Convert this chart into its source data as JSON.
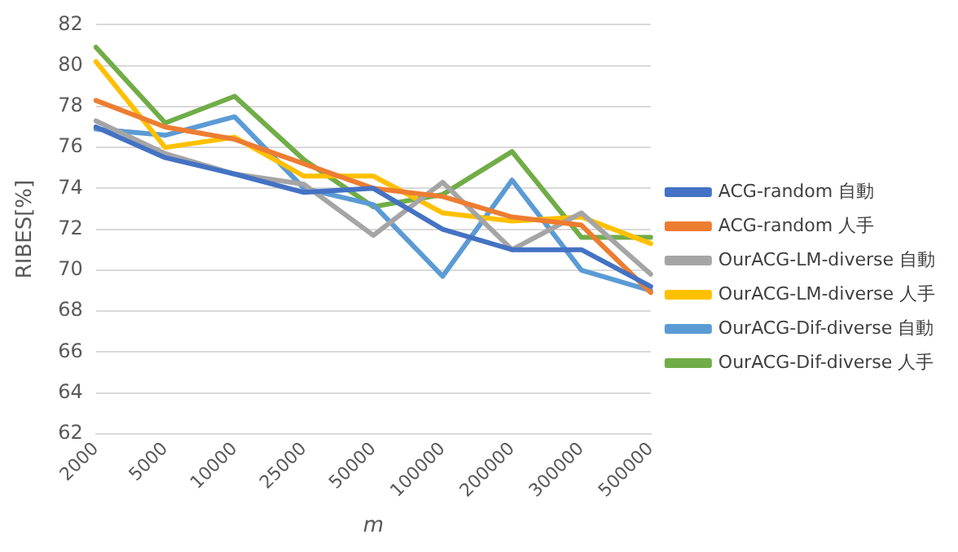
{
  "chart_data": {
    "type": "line",
    "xlabel": "m",
    "ylabel": "RIBES[%]",
    "categories": [
      "2000",
      "5000",
      "10000",
      "25000",
      "50000",
      "100000",
      "200000",
      "300000",
      "500000"
    ],
    "ylim": [
      62,
      82
    ],
    "yticks": [
      62,
      64,
      66,
      68,
      70,
      72,
      74,
      76,
      78,
      80,
      82
    ],
    "grid": "y",
    "legend": "right",
    "marker": "none",
    "line_style": "solid",
    "series": [
      {
        "name": "ACG-random 自動",
        "color": "#4472c4",
        "values": [
          77.0,
          75.5,
          74.7,
          73.8,
          74.0,
          72.0,
          71.0,
          71.0,
          69.2
        ]
      },
      {
        "name": "ACG-random 人手",
        "color": "#ed7d31",
        "values": [
          78.3,
          77.0,
          76.4,
          75.2,
          74.0,
          73.6,
          72.6,
          72.2,
          68.9
        ]
      },
      {
        "name": "OurACG-LM-diverse 自動",
        "color": "#a5a5a5",
        "values": [
          77.3,
          75.7,
          74.7,
          74.2,
          71.7,
          74.3,
          71.0,
          72.8,
          69.8
        ]
      },
      {
        "name": "OurACG-LM-diverse 人手",
        "color": "#ffc000",
        "values": [
          80.2,
          76.0,
          76.5,
          74.6,
          74.6,
          72.8,
          72.4,
          72.6,
          71.3
        ]
      },
      {
        "name": "OurACG-Dif-diverse 自動",
        "color": "#5b9bd5",
        "values": [
          76.9,
          76.6,
          77.5,
          74.0,
          73.2,
          69.7,
          74.4,
          70.0,
          69.0
        ]
      },
      {
        "name": "OurACG-Dif-diverse 人手",
        "color": "#70ad47",
        "values": [
          80.9,
          77.2,
          78.5,
          75.4,
          73.1,
          73.7,
          75.8,
          71.6,
          71.6
        ]
      }
    ]
  }
}
